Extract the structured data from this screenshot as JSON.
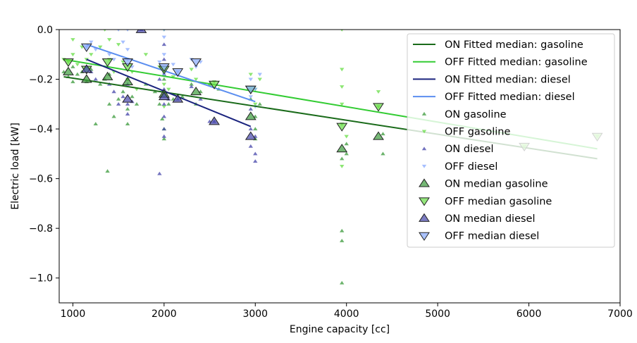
{
  "chart_data": {
    "type": "scatter",
    "xlabel": "Engine capacity [cc]",
    "ylabel": "Electric load [kW]",
    "xlim": [
      850,
      7000
    ],
    "ylim": [
      -1.1,
      0.0
    ],
    "x_ticks": [
      1000,
      2000,
      3000,
      4000,
      5000,
      6000,
      7000
    ],
    "y_ticks": [
      0.0,
      -0.2,
      -0.4,
      -0.6,
      -0.8,
      -1.0
    ],
    "x_tick_labels": [
      "1000",
      "2000",
      "3000",
      "4000",
      "5000",
      "6000",
      "7000"
    ],
    "y_tick_labels": [
      "0.0",
      "−0.2",
      "−0.4",
      "−0.6",
      "−0.8",
      "−1.0"
    ],
    "grid": false,
    "legend_position": "upper-right",
    "colors": {
      "on_gasoline": "#1a6b1a",
      "off_gasoline": "#33cc33",
      "on_diesel": "#1a237e",
      "off_diesel": "#5b8ef0",
      "on_gasoline_pts": "#3a9a3a",
      "off_gasoline_pts": "#66dd44",
      "on_diesel_pts": "#4444aa",
      "off_diesel_pts": "#88aaff"
    },
    "legend": [
      {
        "label": "ON Fitted median: gasoline",
        "kind": "line",
        "color": "#1a6b1a"
      },
      {
        "label": "OFF Fitted median: gasoline",
        "kind": "line",
        "color": "#33cc33"
      },
      {
        "label": "ON Fitted median: diesel",
        "kind": "line",
        "color": "#1a237e"
      },
      {
        "label": "OFF Fitted median: diesel",
        "kind": "line",
        "color": "#5b8ef0"
      },
      {
        "label": "ON gasoline",
        "kind": "small-up",
        "color": "#3a9a3a"
      },
      {
        "label": "OFF gasoline",
        "kind": "small-down",
        "color": "#66dd44"
      },
      {
        "label": "ON diesel",
        "kind": "small-up",
        "color": "#4444aa"
      },
      {
        "label": "OFF diesel",
        "kind": "small-down",
        "color": "#88aaff"
      },
      {
        "label": "ON median gasoline",
        "kind": "big-up",
        "color": "#3a9a3a"
      },
      {
        "label": "OFF median gasoline",
        "kind": "big-down",
        "color": "#66dd44"
      },
      {
        "label": "ON median diesel",
        "kind": "big-up",
        "color": "#4444aa"
      },
      {
        "label": "OFF median diesel",
        "kind": "big-down",
        "color": "#88aaff"
      }
    ],
    "fitted_lines": [
      {
        "name": "ON Fitted median: gasoline",
        "color": "#1a6b1a",
        "x": [
          900,
          6750
        ],
        "y": [
          -0.19,
          -0.52
        ]
      },
      {
        "name": "OFF Fitted median: gasoline",
        "color": "#33cc33",
        "x": [
          900,
          6750
        ],
        "y": [
          -0.12,
          -0.48
        ]
      },
      {
        "name": "ON Fitted median: diesel",
        "color": "#1a237e",
        "x": [
          1150,
          2950
        ],
        "y": [
          -0.12,
          -0.39
        ]
      },
      {
        "name": "OFF Fitted median: diesel",
        "color": "#5b8ef0",
        "x": [
          1150,
          3000
        ],
        "y": [
          -0.06,
          -0.29
        ]
      }
    ],
    "scatter_series": [
      {
        "name": "ON gasoline",
        "marker": "up",
        "color": "#3a9a3a",
        "points": [
          [
            900,
            -0.17
          ],
          [
            950,
            -0.19
          ],
          [
            1000,
            -0.15
          ],
          [
            1000,
            -0.21
          ],
          [
            1050,
            -0.18
          ],
          [
            1100,
            -0.17
          ],
          [
            1150,
            -0.21
          ],
          [
            1200,
            -0.16
          ],
          [
            1250,
            -0.38
          ],
          [
            1300,
            -0.22
          ],
          [
            1350,
            -0.2
          ],
          [
            1380,
            -0.57
          ],
          [
            1400,
            -0.3
          ],
          [
            1400,
            -0.18
          ],
          [
            1450,
            -0.35
          ],
          [
            1500,
            -0.28
          ],
          [
            1550,
            -0.25
          ],
          [
            1600,
            -0.2
          ],
          [
            1600,
            -0.32
          ],
          [
            1600,
            -0.38
          ],
          [
            1650,
            -0.27
          ],
          [
            1700,
            -0.3
          ],
          [
            1800,
            -0.22
          ],
          [
            1900,
            -0.25
          ],
          [
            1950,
            -0.3
          ],
          [
            1980,
            -0.36
          ],
          [
            2000,
            -0.2
          ],
          [
            2000,
            -0.4
          ],
          [
            2000,
            -0.44
          ],
          [
            2050,
            -0.3
          ],
          [
            2100,
            -0.28
          ],
          [
            2200,
            -0.27
          ],
          [
            2300,
            -0.22
          ],
          [
            2350,
            -0.3
          ],
          [
            2400,
            -0.25
          ],
          [
            2500,
            -0.22
          ],
          [
            2600,
            -0.24
          ],
          [
            2950,
            -0.28
          ],
          [
            3000,
            -0.35
          ],
          [
            3000,
            -0.4
          ],
          [
            3000,
            -0.44
          ],
          [
            3050,
            -0.3
          ],
          [
            3950,
            -0.81
          ],
          [
            3950,
            -0.85
          ],
          [
            3950,
            -1.02
          ],
          [
            3950,
            -0.52
          ],
          [
            4000,
            -0.46
          ],
          [
            4000,
            -0.5
          ],
          [
            4400,
            -0.42
          ],
          [
            4400,
            -0.5
          ]
        ]
      },
      {
        "name": "OFF gasoline",
        "marker": "down",
        "color": "#66dd44",
        "points": [
          [
            900,
            -0.12
          ],
          [
            950,
            -0.13
          ],
          [
            1000,
            -0.04
          ],
          [
            1000,
            -0.1
          ],
          [
            1050,
            -0.14
          ],
          [
            1100,
            -0.07
          ],
          [
            1150,
            -0.12
          ],
          [
            1200,
            -0.1
          ],
          [
            1300,
            -0.07
          ],
          [
            1350,
            -0.0
          ],
          [
            1400,
            -0.04
          ],
          [
            1400,
            -0.12
          ],
          [
            1450,
            -0.17
          ],
          [
            1500,
            -0.06
          ],
          [
            1550,
            -0.13
          ],
          [
            1600,
            -0.2
          ],
          [
            1650,
            -0.17
          ],
          [
            1700,
            -0.24
          ],
          [
            1800,
            -0.1
          ],
          [
            1950,
            -0.15
          ],
          [
            2000,
            -0.0
          ],
          [
            2000,
            -0.17
          ],
          [
            2000,
            -0.22
          ],
          [
            2000,
            -0.31
          ],
          [
            2050,
            -0.24
          ],
          [
            2100,
            -0.19
          ],
          [
            2300,
            -0.16
          ],
          [
            2350,
            -0.2
          ],
          [
            2500,
            -0.22
          ],
          [
            2550,
            -0.21
          ],
          [
            2950,
            -0.18
          ],
          [
            3000,
            -0.24
          ],
          [
            3000,
            -0.3
          ],
          [
            3050,
            -0.2
          ],
          [
            3950,
            -0.0
          ],
          [
            3950,
            -0.16
          ],
          [
            3950,
            -0.23
          ],
          [
            3950,
            -0.3
          ],
          [
            3950,
            -0.38
          ],
          [
            3950,
            -0.55
          ],
          [
            4000,
            -0.43
          ],
          [
            4350,
            -0.25
          ],
          [
            4350,
            -0.31
          ],
          [
            5950,
            -0.47
          ],
          [
            6750,
            -0.43
          ]
        ]
      },
      {
        "name": "ON diesel",
        "marker": "up",
        "color": "#4444aa",
        "points": [
          [
            1150,
            -0.15
          ],
          [
            1200,
            -0.17
          ],
          [
            1250,
            -0.2
          ],
          [
            1400,
            -0.22
          ],
          [
            1450,
            -0.25
          ],
          [
            1500,
            -0.3
          ],
          [
            1550,
            -0.27
          ],
          [
            1600,
            -0.22
          ],
          [
            1600,
            -0.3
          ],
          [
            1600,
            -0.34
          ],
          [
            1650,
            -0.29
          ],
          [
            1750,
            -0.0
          ],
          [
            1950,
            -0.58
          ],
          [
            1950,
            -0.2
          ],
          [
            2000,
            -0.06
          ],
          [
            2000,
            -0.12
          ],
          [
            2000,
            -0.18
          ],
          [
            2000,
            -0.24
          ],
          [
            2000,
            -0.3
          ],
          [
            2000,
            -0.35
          ],
          [
            2000,
            -0.4
          ],
          [
            2000,
            -0.43
          ],
          [
            2050,
            -0.28
          ],
          [
            2150,
            -0.28
          ],
          [
            2300,
            -0.23
          ],
          [
            2400,
            -0.28
          ],
          [
            2500,
            -0.37
          ],
          [
            2550,
            -0.37
          ],
          [
            2950,
            -0.32
          ],
          [
            2950,
            -0.4
          ],
          [
            2950,
            -0.47
          ],
          [
            3000,
            -0.43
          ],
          [
            3000,
            -0.5
          ],
          [
            3000,
            -0.53
          ]
        ]
      },
      {
        "name": "OFF diesel",
        "marker": "down",
        "color": "#88aaff",
        "points": [
          [
            1150,
            -0.07
          ],
          [
            1200,
            -0.05
          ],
          [
            1250,
            -0.08
          ],
          [
            1400,
            -0.1
          ],
          [
            1450,
            -0.12
          ],
          [
            1500,
            -0.0
          ],
          [
            1550,
            -0.05
          ],
          [
            1600,
            -0.0
          ],
          [
            1600,
            -0.08
          ],
          [
            1600,
            -0.12
          ],
          [
            1650,
            -0.15
          ],
          [
            1950,
            -0.13
          ],
          [
            2000,
            -0.0
          ],
          [
            2000,
            -0.03
          ],
          [
            2000,
            -0.1
          ],
          [
            2000,
            -0.18
          ],
          [
            2100,
            -0.14
          ],
          [
            2150,
            -0.17
          ],
          [
            2300,
            -0.12
          ],
          [
            2350,
            -0.15
          ],
          [
            2400,
            -0.13
          ],
          [
            2950,
            -0.2
          ],
          [
            2950,
            -0.27
          ],
          [
            3000,
            -0.24
          ],
          [
            3000,
            -0.31
          ],
          [
            3050,
            -0.18
          ]
        ]
      },
      {
        "name": "ON median gasoline",
        "marker": "bigup",
        "color": "#3a9a3a",
        "points": [
          [
            950,
            -0.17
          ],
          [
            1150,
            -0.2
          ],
          [
            1380,
            -0.19
          ],
          [
            1600,
            -0.21
          ],
          [
            2000,
            -0.26
          ],
          [
            2350,
            -0.25
          ],
          [
            2950,
            -0.35
          ],
          [
            3950,
            -0.48
          ],
          [
            4350,
            -0.43
          ]
        ]
      },
      {
        "name": "OFF median gasoline",
        "marker": "bigdown",
        "color": "#66dd44",
        "points": [
          [
            950,
            -0.13
          ],
          [
            1150,
            -0.16
          ],
          [
            1380,
            -0.13
          ],
          [
            1600,
            -0.15
          ],
          [
            2000,
            -0.16
          ],
          [
            2550,
            -0.22
          ],
          [
            2950,
            -0.24
          ],
          [
            3950,
            -0.39
          ],
          [
            4350,
            -0.31
          ],
          [
            5950,
            -0.47
          ],
          [
            6750,
            -0.43
          ]
        ]
      },
      {
        "name": "ON median diesel",
        "marker": "bigup",
        "color": "#4444aa",
        "points": [
          [
            1150,
            -0.16
          ],
          [
            1600,
            -0.28
          ],
          [
            1750,
            -0.0
          ],
          [
            2000,
            -0.27
          ],
          [
            2150,
            -0.28
          ],
          [
            2550,
            -0.37
          ],
          [
            2950,
            -0.43
          ]
        ]
      },
      {
        "name": "OFF median diesel",
        "marker": "bigdown",
        "color": "#88aaff",
        "points": [
          [
            1150,
            -0.07
          ],
          [
            1600,
            -0.13
          ],
          [
            2000,
            -0.15
          ],
          [
            2150,
            -0.17
          ],
          [
            2350,
            -0.13
          ],
          [
            2950,
            -0.24
          ]
        ]
      }
    ]
  }
}
